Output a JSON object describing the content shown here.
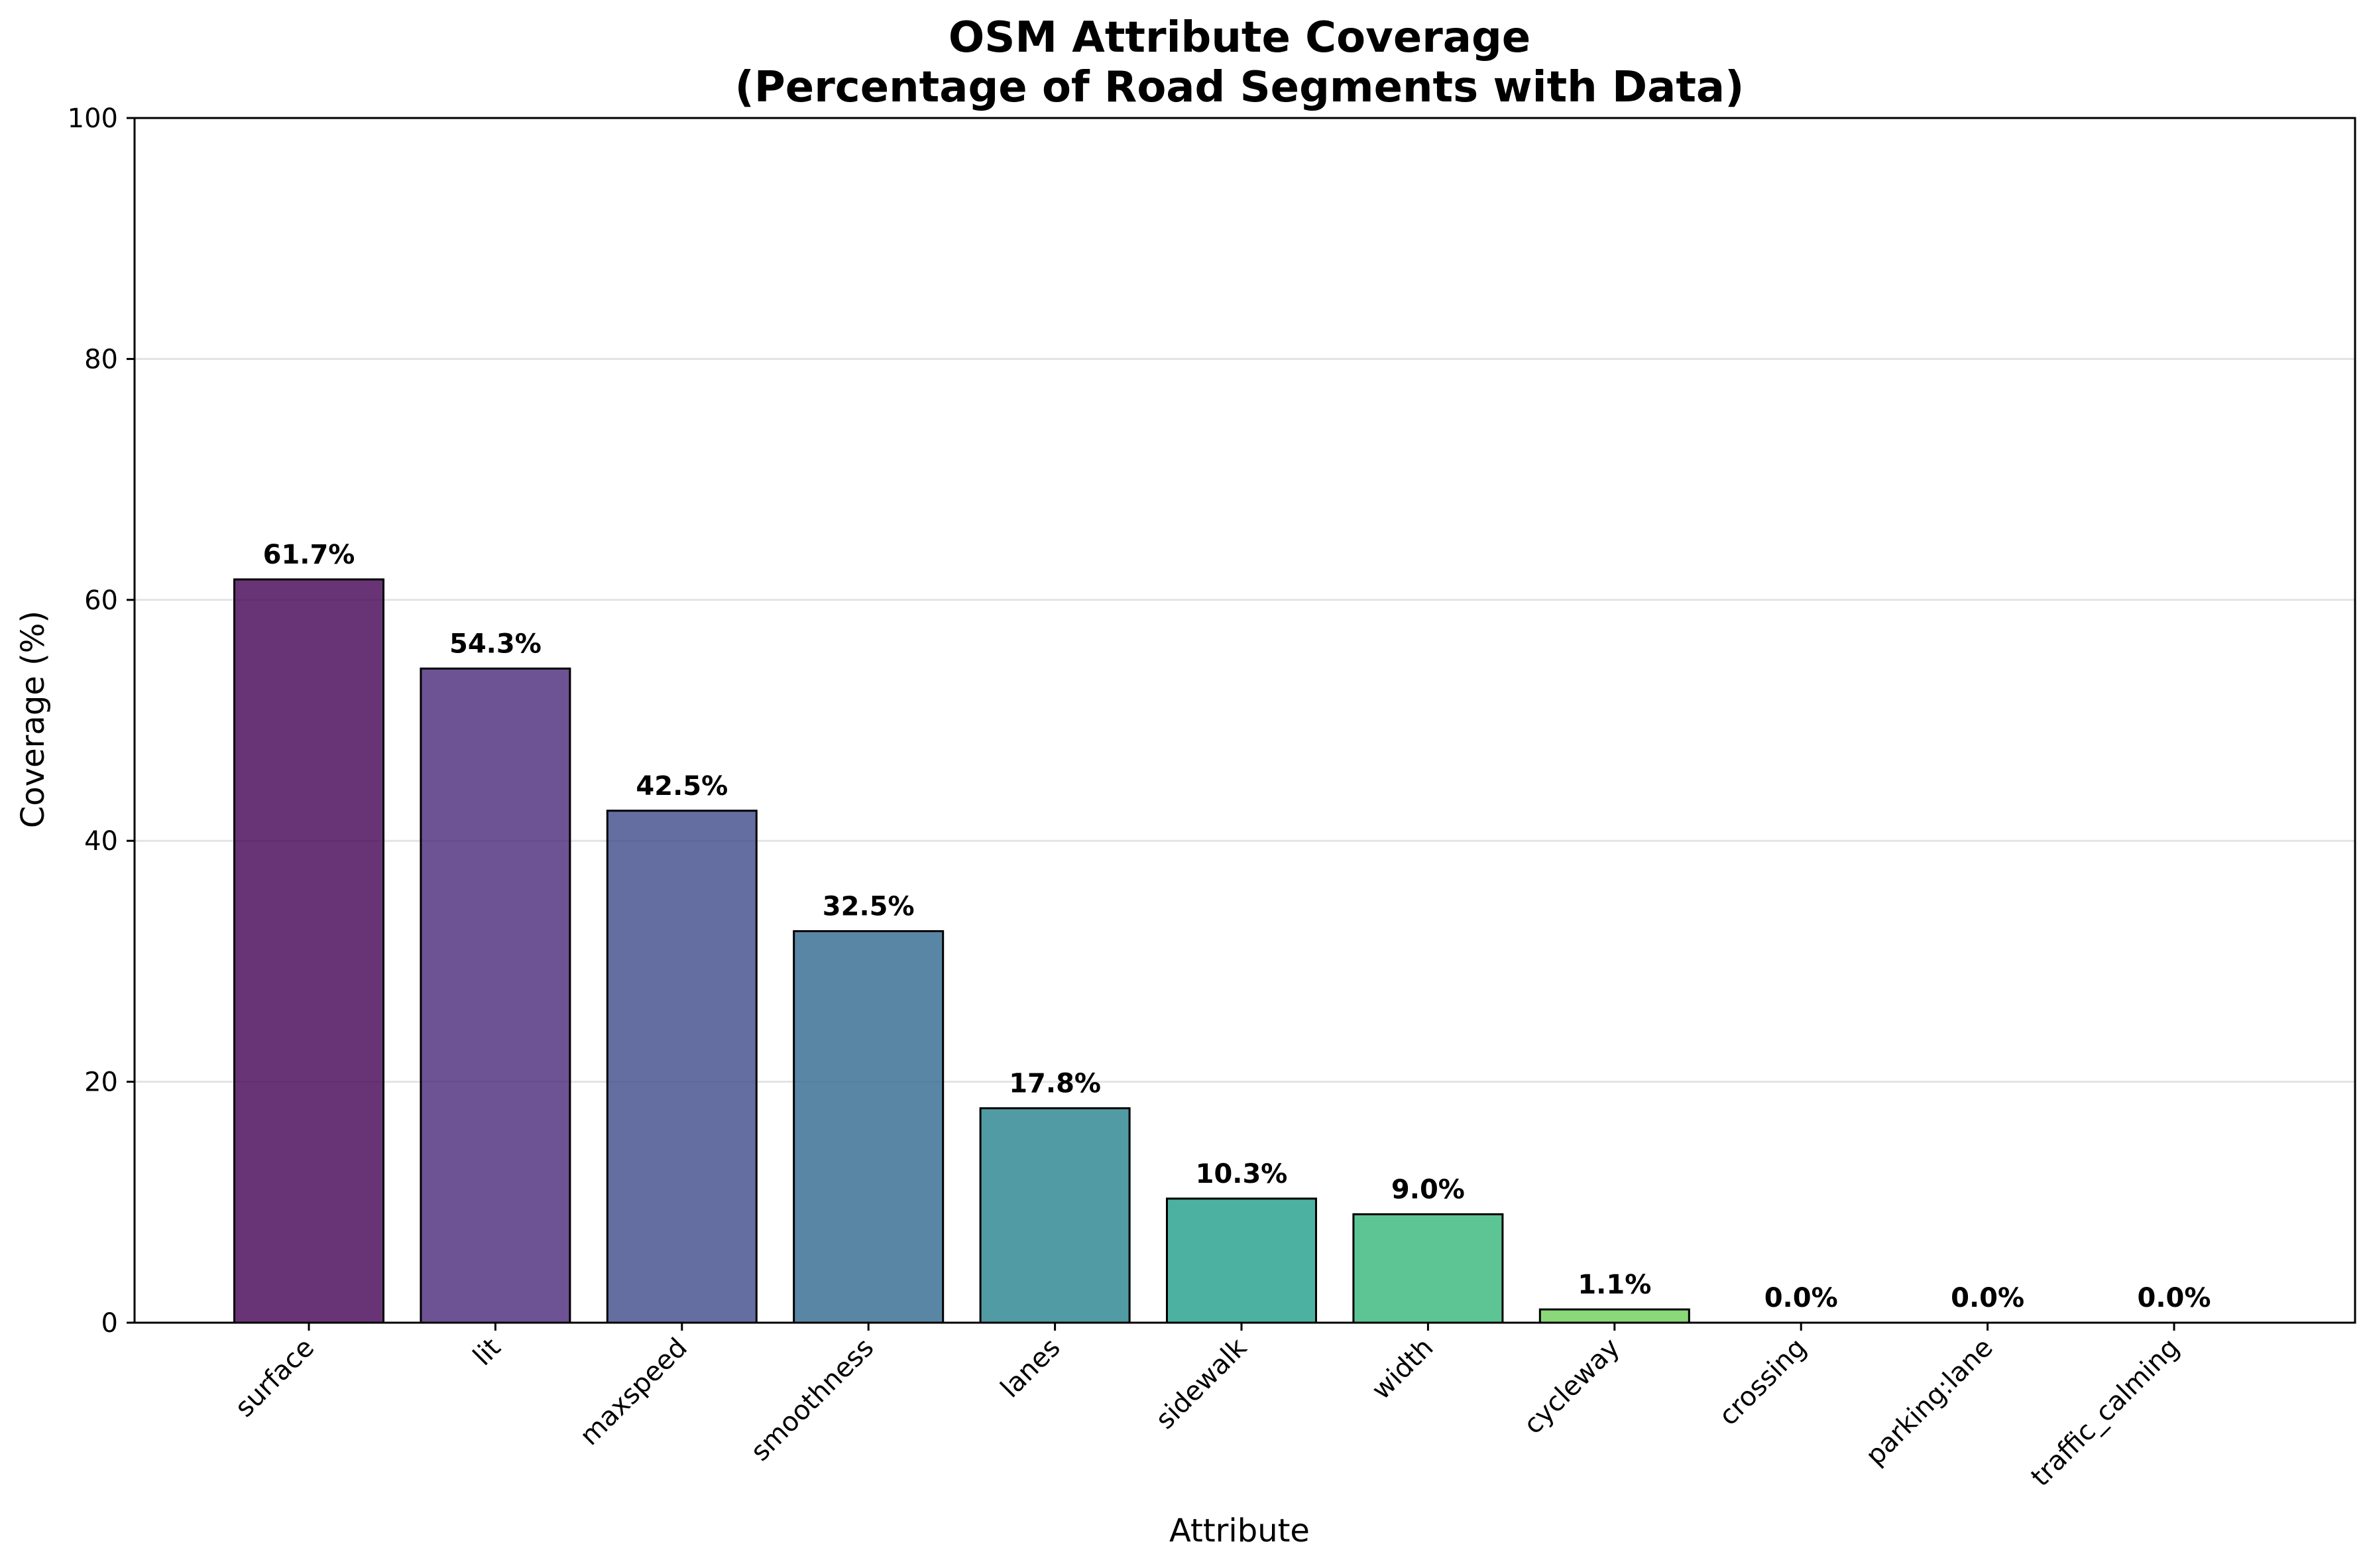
{
  "chart_data": {
    "type": "bar",
    "title_line1": "OSM Attribute Coverage",
    "title_line2": "(Percentage of Road Segments with Data)",
    "xlabel": "Attribute",
    "ylabel": "Coverage (%)",
    "ylim": [
      0,
      100
    ],
    "yticks": [
      0,
      20,
      40,
      60,
      80,
      100
    ],
    "grid": "y-axis horizontal lines",
    "categories": [
      "surface",
      "lit",
      "maxspeed",
      "smoothness",
      "lanes",
      "sidewalk",
      "width",
      "cycleway",
      "crossing",
      "parking:lane",
      "traffic_calming"
    ],
    "values": [
      61.7,
      54.3,
      42.5,
      32.5,
      17.8,
      10.3,
      9.0,
      1.1,
      0.0,
      0.0,
      0.0
    ],
    "data_labels": [
      "61.7%",
      "54.3%",
      "42.5%",
      "32.5%",
      "17.8%",
      "10.3%",
      "9.0%",
      "1.1%",
      "0.0%",
      "0.0%",
      "0.0%"
    ],
    "colors": [
      "#440154",
      "#482878",
      "#3e4a89",
      "#31688e",
      "#26828e",
      "#1f9e89",
      "#35b779",
      "#6ece58",
      "#b5de2b",
      "#fde725",
      "#fde725"
    ],
    "bar_edge_color": "#000000"
  }
}
